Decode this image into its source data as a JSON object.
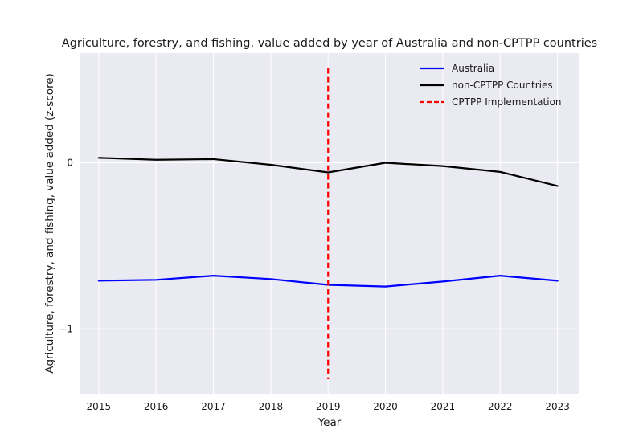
{
  "chart_data": {
    "type": "line",
    "title": "Agriculture, forestry, and fishing, value added by year of Australia and non-CPTPP countries",
    "xlabel": "Year",
    "ylabel": "Agriculture, forestry, and fishing, value added (z-score)",
    "x": [
      2015,
      2016,
      2017,
      2018,
      2019,
      2020,
      2021,
      2022,
      2023
    ],
    "x_ticks": [
      "2015",
      "2016",
      "2017",
      "2018",
      "2019",
      "2020",
      "2021",
      "2022",
      "2023"
    ],
    "y_ticks": [
      {
        "value": 0,
        "label": "0"
      },
      {
        "value": -1,
        "label": "−1"
      }
    ],
    "xlim": [
      2014.68,
      2023.37
    ],
    "ylim": [
      -1.39,
      0.66
    ],
    "grid": true,
    "background": "#eaeaf2",
    "legend_position": "top-right",
    "series": [
      {
        "name": "Australia",
        "color": "#0000ff",
        "style": "solid",
        "values": [
          -0.71,
          -0.705,
          -0.68,
          -0.7,
          -0.735,
          -0.745,
          -0.715,
          -0.68,
          -0.71
        ]
      },
      {
        "name": "non-CPTPP Countries",
        "color": "#000000",
        "style": "solid",
        "values": [
          0.03,
          0.018,
          0.022,
          -0.012,
          -0.058,
          0.0,
          -0.02,
          -0.055,
          -0.14
        ]
      }
    ],
    "vline": {
      "name": "CPTPP Implementation",
      "x": 2019,
      "color": "#ff0000",
      "style": "dashed",
      "y_range": [
        -1.3,
        0.57
      ]
    }
  }
}
